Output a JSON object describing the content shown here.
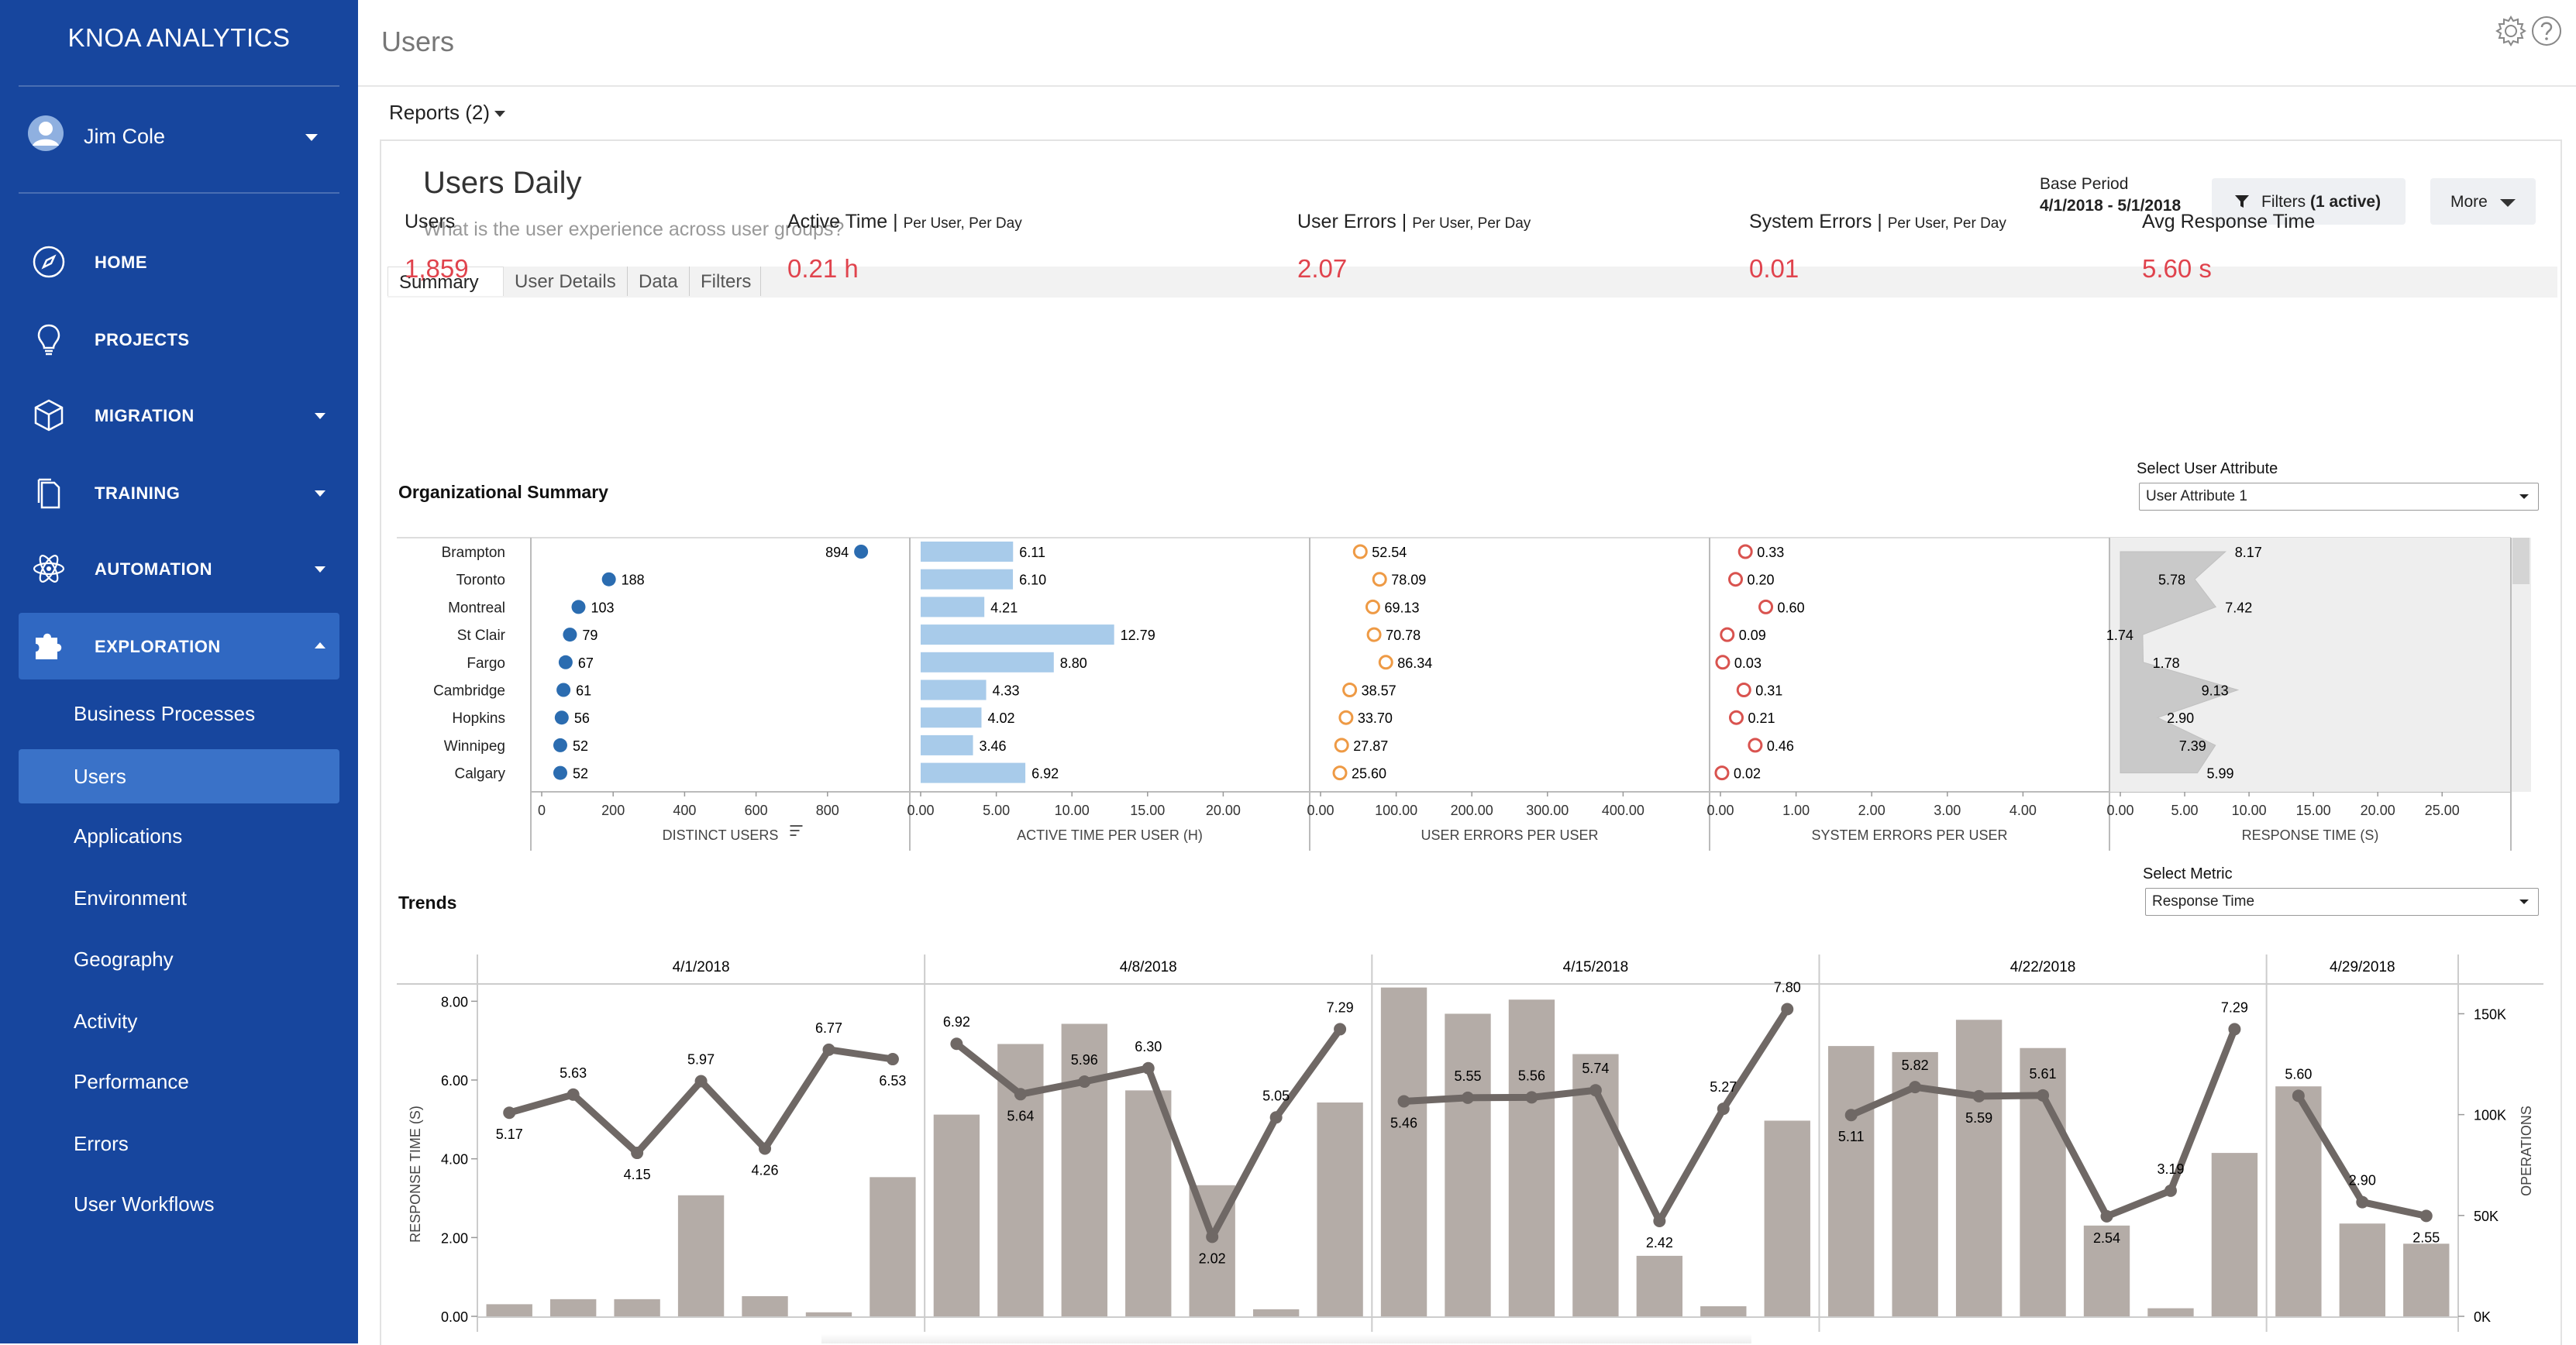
{
  "app": {
    "brand": "KNOA ANALYTICS",
    "user_name": "Jim Cole",
    "page_title": "Users"
  },
  "nav": [
    {
      "label": "HOME",
      "icon": "compass-icon",
      "caret": ""
    },
    {
      "label": "PROJECTS",
      "icon": "lightbulb-icon",
      "caret": ""
    },
    {
      "label": "MIGRATION",
      "icon": "cube-icon",
      "caret": "down"
    },
    {
      "label": "TRAINING",
      "icon": "documents-icon",
      "caret": "down"
    },
    {
      "label": "AUTOMATION",
      "icon": "atom-icon",
      "caret": "down"
    },
    {
      "label": "EXPLORATION",
      "icon": "puzzle-icon",
      "caret": "up",
      "active": true
    }
  ],
  "subnav": [
    {
      "label": "Business Processes"
    },
    {
      "label": "Users",
      "active": true
    },
    {
      "label": "Applications"
    },
    {
      "label": "Environment"
    },
    {
      "label": "Geography"
    },
    {
      "label": "Activity"
    },
    {
      "label": "Performance"
    },
    {
      "label": "Errors"
    },
    {
      "label": "User Workflows"
    }
  ],
  "reports_label": "Reports (2)",
  "report": {
    "title": "Users Daily",
    "subtitle": "What is the user experience across user groups?",
    "base_period_label": "Base Period",
    "base_period_dates": "4/1/2018 - 5/1/2018",
    "filters_label": "Filters",
    "filters_active": "(1 active)",
    "more_label": "More"
  },
  "tabs": [
    "Summary",
    "User Details",
    "Data",
    "Filters"
  ],
  "kpis": [
    {
      "label": "Users",
      "sub": "",
      "value": "1,859"
    },
    {
      "label": "Active Time",
      "sub": "Per User, Per Day",
      "value": "0.21 h"
    },
    {
      "label": "User Errors",
      "sub": "Per User, Per Day",
      "value": "2.07"
    },
    {
      "label": "System Errors",
      "sub": "Per User, Per Day",
      "value": "0.01"
    },
    {
      "label": "Avg Response Time",
      "sub": "",
      "value": "5.60 s"
    }
  ],
  "org": {
    "title": "Organizational Summary",
    "select_label": "Select User Attribute",
    "select_value": "User Attribute 1"
  },
  "trends": {
    "title": "Trends",
    "select_label": "Select Metric",
    "select_value": "Response Time"
  },
  "colors": {
    "sidebar": "#17469e",
    "kpi": "#e0434d",
    "dot_blue": "#2b6cb0",
    "bar_blue": "#a8cbea",
    "ring_orange": "#ee9a45",
    "ring_red": "#d9534f",
    "bar_gray": "#b4aca7",
    "line_gray": "#6f6865"
  },
  "chart_data": [
    {
      "type": "table",
      "title": "Organizational Summary",
      "categories": [
        "Brampton",
        "Toronto",
        "Montreal",
        "St Clair",
        "Fargo",
        "Cambridge",
        "Hopkins",
        "Winnipeg",
        "Calgary"
      ],
      "panels": [
        {
          "name": "DISTINCT USERS",
          "kind": "dot",
          "values": [
            894,
            188,
            103,
            79,
            67,
            61,
            56,
            52,
            52
          ],
          "labels": [
            "894",
            "188",
            "103",
            "79",
            "67",
            "61",
            "56",
            "52",
            "52"
          ],
          "ticks": [
            0,
            200,
            400,
            600,
            800
          ],
          "xlim": [
            0,
            1000
          ]
        },
        {
          "name": "ACTIVE TIME PER USER (H)",
          "kind": "bar",
          "values": [
            6.11,
            6.1,
            4.21,
            12.79,
            8.8,
            4.33,
            4.02,
            3.46,
            6.92
          ],
          "labels": [
            "6.11",
            "6.10",
            "4.21",
            "12.79",
            "8.80",
            "4.33",
            "4.02",
            "3.46",
            "6.92"
          ],
          "ticks": [
            "0.00",
            "5.00",
            "10.00",
            "15.00",
            "20.00"
          ],
          "xlim": [
            0,
            25
          ]
        },
        {
          "name": "USER ERRORS PER USER",
          "kind": "ring",
          "values": [
            52.54,
            78.09,
            69.13,
            70.78,
            86.34,
            38.57,
            33.7,
            27.87,
            25.6
          ],
          "labels": [
            "52.54",
            "78.09",
            "69.13",
            "70.78",
            "86.34",
            "38.57",
            "33.70",
            "27.87",
            "25.60"
          ],
          "ticks": [
            "0.00",
            "100.00",
            "200.00",
            "300.00",
            "400.00"
          ],
          "xlim": [
            0,
            500
          ]
        },
        {
          "name": "SYSTEM ERRORS PER USER",
          "kind": "ring_red",
          "values": [
            0.33,
            0.2,
            0.6,
            0.09,
            0.03,
            0.31,
            0.21,
            0.46,
            0.02
          ],
          "labels": [
            "0.33",
            "0.20",
            "0.60",
            "0.09",
            "0.03",
            "0.31",
            "0.21",
            "0.46",
            "0.02"
          ],
          "ticks": [
            "0.00",
            "1.00",
            "2.00",
            "3.00",
            "4.00"
          ],
          "xlim": [
            0,
            5
          ]
        },
        {
          "name": "RESPONSE TIME (S)",
          "kind": "area",
          "values": [
            8.17,
            5.78,
            7.42,
            1.74,
            1.78,
            9.13,
            2.9,
            7.39,
            5.99
          ],
          "labels": [
            "8.17",
            "5.78",
            "7.42",
            "1.74",
            "1.78",
            "9.13",
            "2.90",
            "7.39",
            "5.99"
          ],
          "ticks": [
            "0.00",
            "5.00",
            "10.00",
            "15.00",
            "20.00",
            "25.00"
          ],
          "xlim": [
            0,
            29.5
          ]
        }
      ]
    },
    {
      "type": "bar",
      "title": "Trends",
      "ylabel": "RESPONSE TIME (S)",
      "y2label": "OPERATIONS",
      "weeks": [
        "4/1/2018",
        "4/8/2018",
        "4/15/2018",
        "4/22/2018",
        "4/29/2018"
      ],
      "ylim": [
        0,
        8.4
      ],
      "yticks": [
        "0.00",
        "2.00",
        "4.00",
        "6.00",
        "8.00"
      ],
      "y2lim": [
        0,
        164000
      ],
      "y2ticks": [
        "0K",
        "50K",
        "100K",
        "150K"
      ],
      "series": [
        {
          "name": "Operations",
          "values": [
            6000,
            8500,
            8500,
            60000,
            10000,
            2000,
            69000,
            100000,
            135000,
            145000,
            112000,
            65000,
            3500,
            106000,
            163000,
            150000,
            157000,
            130000,
            30000,
            5000,
            97000,
            134000,
            131000,
            147000,
            133000,
            45000,
            4000,
            81000,
            114000,
            46000,
            36000
          ]
        },
        {
          "name": "Response Time",
          "values": [
            5.17,
            5.63,
            4.15,
            5.97,
            4.26,
            6.77,
            6.53,
            6.92,
            5.64,
            5.96,
            6.3,
            2.02,
            5.05,
            7.29,
            5.46,
            5.55,
            5.56,
            5.74,
            2.42,
            5.27,
            7.8,
            5.11,
            5.82,
            5.59,
            5.61,
            2.54,
            3.19,
            7.29,
            5.6,
            2.9,
            2.55
          ],
          "labels": [
            "5.17",
            "5.63",
            "4.15",
            "5.97",
            "4.26",
            "6.77",
            "6.53",
            "6.92",
            "5.64",
            "5.96",
            "6.30",
            "2.02",
            "5.05",
            "7.29",
            "5.46",
            "5.55",
            "5.56",
            "5.74",
            "2.42",
            "5.27",
            "7.80",
            "5.11",
            "5.82",
            "5.59",
            "5.61",
            "2.54",
            "3.19",
            "7.29",
            "5.60",
            "2.90",
            "2.55"
          ]
        }
      ]
    }
  ]
}
